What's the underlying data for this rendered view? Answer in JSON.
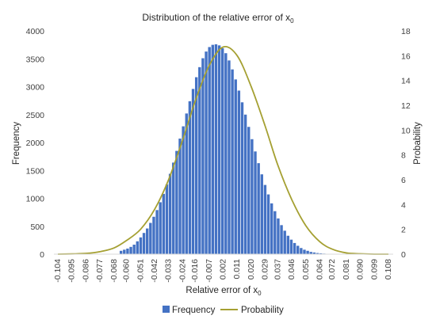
{
  "chart_data": {
    "type": "bar",
    "title": "Distribution of the relative error of x",
    "title_subscript": "0",
    "xlabel": "Relative error of x",
    "xlabel_subscript": "0",
    "ylabel": "Frequency",
    "y2label": "Probability",
    "ylim": [
      0,
      4000
    ],
    "y_ticks": [
      "0",
      "500",
      "1000",
      "1500",
      "2000",
      "2500",
      "3000",
      "3500",
      "4000"
    ],
    "y2lim": [
      0,
      18
    ],
    "y2_ticks": [
      "0",
      "2",
      "4",
      "6",
      "8",
      "10",
      "12",
      "14",
      "16",
      "18"
    ],
    "x_ticks": [
      "-0.104",
      "-0.095",
      "-0.086",
      "-0.077",
      "-0.068",
      "-0.060",
      "-0.051",
      "-0.042",
      "-0.033",
      "-0.024",
      "-0.016",
      "-0.007",
      "0.002",
      "0.011",
      "0.020",
      "0.029",
      "0.037",
      "0.046",
      "0.055",
      "0.064",
      "0.072",
      "0.081",
      "0.090",
      "0.099",
      "0.108"
    ],
    "grid": false,
    "legend": "bottom",
    "colors": {
      "bar": "#4472C4",
      "line": "#A5A032"
    },
    "series": [
      {
        "name": "Frequency",
        "type": "bar",
        "x": [
          -0.0635,
          -0.0614,
          -0.0593,
          -0.0572,
          -0.0551,
          -0.053,
          -0.0509,
          -0.0488,
          -0.0467,
          -0.0446,
          -0.0425,
          -0.0404,
          -0.0383,
          -0.0362,
          -0.0341,
          -0.032,
          -0.0299,
          -0.0278,
          -0.0257,
          -0.0236,
          -0.0215,
          -0.0194,
          -0.0173,
          -0.0152,
          -0.0131,
          -0.011,
          -0.0089,
          -0.0068,
          -0.0047,
          -0.0026,
          -0.0005,
          0.0016,
          0.0037,
          0.0058,
          0.0079,
          0.01,
          0.0121,
          0.0142,
          0.0163,
          0.0184,
          0.0205,
          0.0226,
          0.0247,
          0.0268,
          0.0289,
          0.031,
          0.0331,
          0.0352,
          0.0373,
          0.0394,
          0.0415,
          0.0436,
          0.0457,
          0.0478,
          0.0499,
          0.052,
          0.0541,
          0.0562,
          0.0583,
          0.0604,
          0.0625,
          0.0646,
          0.0667
        ],
        "values": [
          60,
          80,
          100,
          130,
          170,
          230,
          300,
          380,
          460,
          560,
          670,
          790,
          930,
          1080,
          1250,
          1440,
          1640,
          1850,
          2070,
          2290,
          2520,
          2740,
          2960,
          3170,
          3350,
          3510,
          3630,
          3710,
          3750,
          3760,
          3740,
          3690,
          3600,
          3470,
          3310,
          3130,
          2930,
          2720,
          2500,
          2280,
          2060,
          1840,
          1630,
          1430,
          1240,
          1070,
          910,
          770,
          640,
          520,
          420,
          330,
          260,
          200,
          150,
          110,
          80,
          60,
          40,
          30,
          20,
          15,
          10
        ]
      },
      {
        "name": "Probability",
        "type": "line",
        "x": [
          -0.104,
          -0.095,
          -0.086,
          -0.077,
          -0.068,
          -0.06,
          -0.051,
          -0.042,
          -0.033,
          -0.024,
          -0.016,
          -0.007,
          0.002,
          0.011,
          0.02,
          0.029,
          0.037,
          0.046,
          0.055,
          0.064,
          0.072,
          0.081,
          0.09,
          0.099,
          0.108
        ],
        "values": [
          0.0,
          0.02,
          0.06,
          0.2,
          0.5,
          1.1,
          2.0,
          3.6,
          6.0,
          9.2,
          12.3,
          15.2,
          16.7,
          16.0,
          13.5,
          10.3,
          7.2,
          4.4,
          2.3,
          1.0,
          0.4,
          0.1,
          0.03,
          0.0,
          0.0
        ]
      }
    ]
  }
}
